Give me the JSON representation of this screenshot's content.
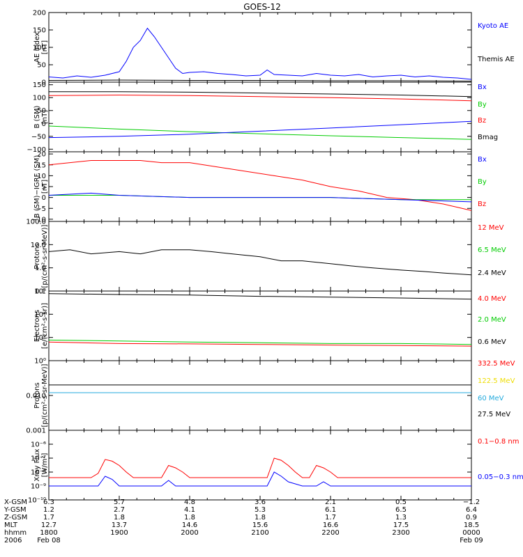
{
  "title": "GOES-12",
  "colors": {
    "blue": "#0000ff",
    "red": "#ff0000",
    "green": "#00cc00",
    "black": "#000000",
    "cyan": "#22aadd",
    "yellow": "#eedd00"
  },
  "chart_data": [
    {
      "type": "line",
      "ylabel": [
        "AE index",
        "[nT]"
      ],
      "yscale": "linear",
      "ylim": [
        0,
        200
      ],
      "yticks": [
        0,
        50,
        100,
        150,
        200
      ],
      "yticklabels": [
        "0",
        "50",
        "100",
        "150",
        "200"
      ],
      "legend": [
        "Kyoto AE",
        "Themis AE"
      ],
      "legend_colors": [
        "#0000ff",
        "#000000"
      ],
      "series": [
        {
          "name": "Kyoto AE",
          "color": "#0000ff",
          "x": [
            18.0,
            18.2,
            18.4,
            18.6,
            18.8,
            19.0,
            19.1,
            19.2,
            19.3,
            19.4,
            19.5,
            19.6,
            19.7,
            19.8,
            19.9,
            20.0,
            20.2,
            20.4,
            20.6,
            20.8,
            21.0,
            21.1,
            21.2,
            21.4,
            21.6,
            21.8,
            22.0,
            22.2,
            22.4,
            22.6,
            22.8,
            23.0,
            23.2,
            23.4,
            23.6,
            23.8,
            24.0
          ],
          "y": [
            15,
            12,
            18,
            14,
            20,
            30,
            60,
            100,
            120,
            155,
            130,
            100,
            70,
            40,
            25,
            28,
            30,
            25,
            22,
            18,
            20,
            35,
            22,
            20,
            18,
            25,
            20,
            18,
            22,
            15,
            18,
            20,
            15,
            18,
            14,
            12,
            8
          ]
        },
        {
          "name": "Themis AE",
          "color": "#000000",
          "x": [
            18.0,
            19.0,
            20.0,
            21.0,
            22.0,
            23.0,
            24.0
          ],
          "y": [
            5,
            6,
            5,
            5,
            4,
            4,
            3
          ]
        }
      ]
    },
    {
      "type": "line",
      "ylabel": [
        "B (SM)",
        "[nT]"
      ],
      "yscale": "linear",
      "ylim": [
        -110,
        160
      ],
      "yticks": [
        -100,
        -50,
        0,
        50,
        100,
        150
      ],
      "yticklabels": [
        "−100",
        "−50",
        "0",
        "50",
        "100",
        "150"
      ],
      "legend": [
        "Bx",
        "By",
        "Bz",
        "Bmag"
      ],
      "legend_colors": [
        "#0000ff",
        "#00cc00",
        "#ff0000",
        "#000000"
      ],
      "series": [
        {
          "name": "Bmag",
          "color": "#000000",
          "x": [
            18,
            19,
            20,
            21,
            22,
            23,
            24
          ],
          "y": [
            123,
            123,
            121,
            118,
            114,
            110,
            104
          ]
        },
        {
          "name": "Bz",
          "color": "#ff0000",
          "x": [
            18,
            19,
            20,
            21,
            22,
            23,
            24
          ],
          "y": [
            108,
            110,
            108,
            104,
            100,
            95,
            88
          ]
        },
        {
          "name": "By",
          "color": "#00cc00",
          "x": [
            18,
            19,
            20,
            21,
            22,
            23,
            24
          ],
          "y": [
            -10,
            -22,
            -32,
            -40,
            -48,
            -55,
            -62
          ]
        },
        {
          "name": "Bx",
          "color": "#0000ff",
          "x": [
            18,
            19,
            20,
            21,
            22,
            23,
            24
          ],
          "y": [
            -55,
            -50,
            -42,
            -30,
            -18,
            -5,
            8
          ]
        }
      ]
    },
    {
      "type": "line",
      "ylabel": [
        "B (SM)−IGRF (SM)",
        "[nT]"
      ],
      "yscale": "linear",
      "ylim": [
        -11,
        21
      ],
      "yticks": [
        -10,
        -5,
        0,
        5,
        10,
        15,
        20
      ],
      "yticklabels": [
        "−10",
        "−5",
        "0",
        "5",
        "10",
        "15",
        "20"
      ],
      "legend": [
        "Bx",
        "By",
        "Bz"
      ],
      "legend_colors": [
        "#0000ff",
        "#00cc00",
        "#ff0000"
      ],
      "series": [
        {
          "name": "Bz",
          "color": "#ff0000",
          "x": [
            18.0,
            18.3,
            18.6,
            19.0,
            19.3,
            19.6,
            20.0,
            20.4,
            20.8,
            21.2,
            21.6,
            22.0,
            22.4,
            22.8,
            23.2,
            23.6,
            24.0
          ],
          "y": [
            15,
            16,
            17,
            17,
            17,
            16,
            16,
            14,
            12,
            10,
            8,
            5,
            3,
            0,
            -1,
            -3,
            -6
          ]
        },
        {
          "name": "By",
          "color": "#00cc00",
          "x": [
            18,
            19,
            20,
            21,
            22,
            23,
            24
          ],
          "y": [
            1,
            1,
            0,
            0,
            0,
            -1,
            -1
          ]
        },
        {
          "name": "Bx",
          "color": "#0000ff",
          "x": [
            18,
            18.6,
            19,
            20,
            21,
            22,
            23,
            24
          ],
          "y": [
            1,
            2,
            1,
            0,
            0,
            0,
            -1,
            -2
          ]
        }
      ]
    },
    {
      "type": "line",
      "ylabel": [
        "Protons",
        "[p/(cm²-s-sr-MeV)]"
      ],
      "yscale": "log",
      "ylim": [
        0.1,
        100
      ],
      "yticks": [
        0.1,
        1,
        10,
        100
      ],
      "yticklabels": [
        "0.1",
        "1.0",
        "10.0",
        "100.0"
      ],
      "legend": [
        "12 MeV",
        "6.5 MeV",
        "2.4 MeV"
      ],
      "legend_colors": [
        "#ff0000",
        "#00cc00",
        "#000000"
      ],
      "series": [
        {
          "name": "2.4 MeV",
          "color": "#000000",
          "x": [
            18.0,
            18.3,
            18.6,
            19.0,
            19.3,
            19.6,
            20.0,
            20.3,
            20.6,
            21.0,
            21.3,
            21.6,
            22.0,
            22.3,
            22.6,
            23.0,
            23.3,
            23.6,
            24.0
          ],
          "y": [
            5,
            6,
            4,
            5,
            4,
            6,
            6,
            5,
            4,
            3,
            2,
            2,
            1.5,
            1.2,
            1,
            0.8,
            0.7,
            0.6,
            0.5
          ]
        }
      ]
    },
    {
      "type": "line",
      "ylabel": [
        "Electrons",
        "[e/(cm²-s-sr)]"
      ],
      "yscale": "log",
      "ylim": [
        1,
        1000000
      ],
      "yticks": [
        1,
        100,
        10000,
        1000000
      ],
      "yticklabels": [
        "10⁰",
        "10²",
        "10⁴",
        "10⁶"
      ],
      "legend": [
        "4.0 MeV",
        "2.0 MeV",
        "0.6 MeV"
      ],
      "legend_colors": [
        "#ff0000",
        "#00cc00",
        "#000000"
      ],
      "series": [
        {
          "name": "0.6 MeV",
          "color": "#000000",
          "x": [
            18,
            19,
            20,
            21,
            22,
            23,
            24
          ],
          "y": [
            600000,
            500000,
            450000,
            350000,
            300000,
            250000,
            200000
          ]
        },
        {
          "name": "2.0 MeV",
          "color": "#00cc00",
          "x": [
            18,
            19,
            20,
            21,
            22,
            23,
            24
          ],
          "y": [
            60,
            50,
            40,
            35,
            30,
            30,
            25
          ]
        },
        {
          "name": "4.0 MeV",
          "color": "#ff0000",
          "x": [
            18,
            19,
            20,
            21,
            22,
            23,
            24
          ],
          "y": [
            40,
            30,
            28,
            25,
            22,
            20,
            18
          ]
        }
      ]
    },
    {
      "type": "line",
      "ylabel": [
        "Protons",
        "[p/(cm²-s-sr-MeV)]"
      ],
      "yscale": "log",
      "ylim": [
        0.001,
        0.1
      ],
      "yticks": [
        0.001,
        0.01
      ],
      "yticklabels": [
        "0.001",
        "0.010"
      ],
      "legend": [
        "332.5 MeV",
        "122.5 MeV",
        "60 MeV",
        "27.5 MeV"
      ],
      "legend_colors": [
        "#ff0000",
        "#eedd00",
        "#22aadd",
        "#000000"
      ],
      "series": [
        {
          "name": "27.5 MeV",
          "color": "#000000",
          "x": [
            18,
            19,
            20,
            21,
            22,
            23,
            24
          ],
          "y": [
            0.02,
            0.02,
            0.02,
            0.02,
            0.02,
            0.02,
            0.02
          ]
        },
        {
          "name": "60 MeV",
          "color": "#22aadd",
          "x": [
            18,
            19,
            20,
            21,
            22,
            23,
            24
          ],
          "y": [
            0.012,
            0.012,
            0.012,
            0.012,
            0.012,
            0.012,
            0.012
          ]
        }
      ]
    },
    {
      "type": "line",
      "ylabel": [
        "Xray Flux",
        "[W/m²]"
      ],
      "yscale": "log",
      "ylim": [
        1e-10,
        1e-05
      ],
      "yticks": [
        1e-10,
        1e-09,
        1e-08,
        1e-07,
        1e-06
      ],
      "yticklabels": [
        "10⁻¹⁰",
        "10⁻⁹",
        "10⁻⁸",
        "10⁻⁷",
        "10⁻⁶"
      ],
      "legend": [
        "0.1−0.8 nm",
        "0.05−0.3 nm"
      ],
      "legend_colors": [
        "#ff0000",
        "#0000ff"
      ],
      "series": [
        {
          "name": "0.1−0.8 nm",
          "color": "#ff0000",
          "x": [
            18.0,
            18.3,
            18.6,
            18.7,
            18.8,
            18.9,
            19.0,
            19.1,
            19.2,
            19.6,
            19.7,
            19.8,
            19.9,
            20.0,
            20.2,
            20.6,
            21.0,
            21.1,
            21.2,
            21.3,
            21.4,
            21.5,
            21.6,
            21.7,
            21.8,
            21.9,
            22.0,
            22.1,
            22.2,
            22.4,
            22.8,
            23.2,
            23.6,
            24.0
          ],
          "y": [
            4e-09,
            4e-09,
            4e-09,
            8e-09,
            8e-08,
            6e-08,
            3e-08,
            1e-08,
            4e-09,
            4e-09,
            3e-08,
            2e-08,
            1e-08,
            4e-09,
            4e-09,
            4e-09,
            4e-09,
            4e-09,
            1e-07,
            7e-08,
            3e-08,
            1e-08,
            4e-09,
            4e-09,
            3e-08,
            2e-08,
            1e-08,
            4e-09,
            4e-09,
            4e-09,
            4e-09,
            4e-09,
            4e-09,
            4e-09
          ]
        },
        {
          "name": "0.05−0.3 nm",
          "color": "#0000ff",
          "x": [
            18.0,
            18.3,
            18.7,
            18.8,
            18.9,
            19.0,
            19.2,
            19.6,
            19.7,
            19.8,
            20.0,
            20.6,
            21.1,
            21.2,
            21.3,
            21.4,
            21.6,
            21.8,
            21.9,
            22.0,
            22.4,
            22.8,
            23.2,
            23.6,
            24.0
          ],
          "y": [
            1e-09,
            1e-09,
            1e-09,
            5e-09,
            3e-09,
            1e-09,
            1e-09,
            1e-09,
            2.5e-09,
            1e-09,
            1e-09,
            1e-09,
            1e-09,
            1e-08,
            5e-09,
            2e-09,
            1e-09,
            1e-09,
            2e-09,
            1e-09,
            1e-09,
            1e-09,
            1e-09,
            1e-09,
            1e-09
          ]
        }
      ]
    }
  ],
  "xaxis": {
    "xlim": [
      18,
      24
    ],
    "major_ticks": [
      18,
      19,
      20,
      21,
      22,
      23,
      24
    ],
    "minor_step": 0.25
  },
  "ephemeris": {
    "row_labels": [
      "X-GSM",
      "Y-GSM",
      "Z-GSM",
      "MLT",
      "hhmm",
      "2006"
    ],
    "columns": [
      {
        "x": 18.0,
        "values": [
          "6.3",
          "1.2",
          "1.7",
          "12.7",
          "1800",
          "Feb 08"
        ]
      },
      {
        "x": 19.0,
        "values": [
          "5.7",
          "2.7",
          "1.8",
          "13.7",
          "1900",
          ""
        ]
      },
      {
        "x": 20.0,
        "values": [
          "4.8",
          "4.1",
          "1.8",
          "14.6",
          "2000",
          ""
        ]
      },
      {
        "x": 21.0,
        "values": [
          "3.6",
          "5.3",
          "1.8",
          "15.6",
          "2100",
          ""
        ]
      },
      {
        "x": 22.0,
        "values": [
          "2.1",
          "6.1",
          "1.7",
          "16.6",
          "2200",
          ""
        ]
      },
      {
        "x": 23.0,
        "values": [
          "0.5",
          "6.5",
          "1.3",
          "17.5",
          "2300",
          ""
        ]
      },
      {
        "x": 24.0,
        "values": [
          "−1.2",
          "6.4",
          "0.9",
          "18.5",
          "0000",
          "Feb 09"
        ]
      }
    ]
  }
}
